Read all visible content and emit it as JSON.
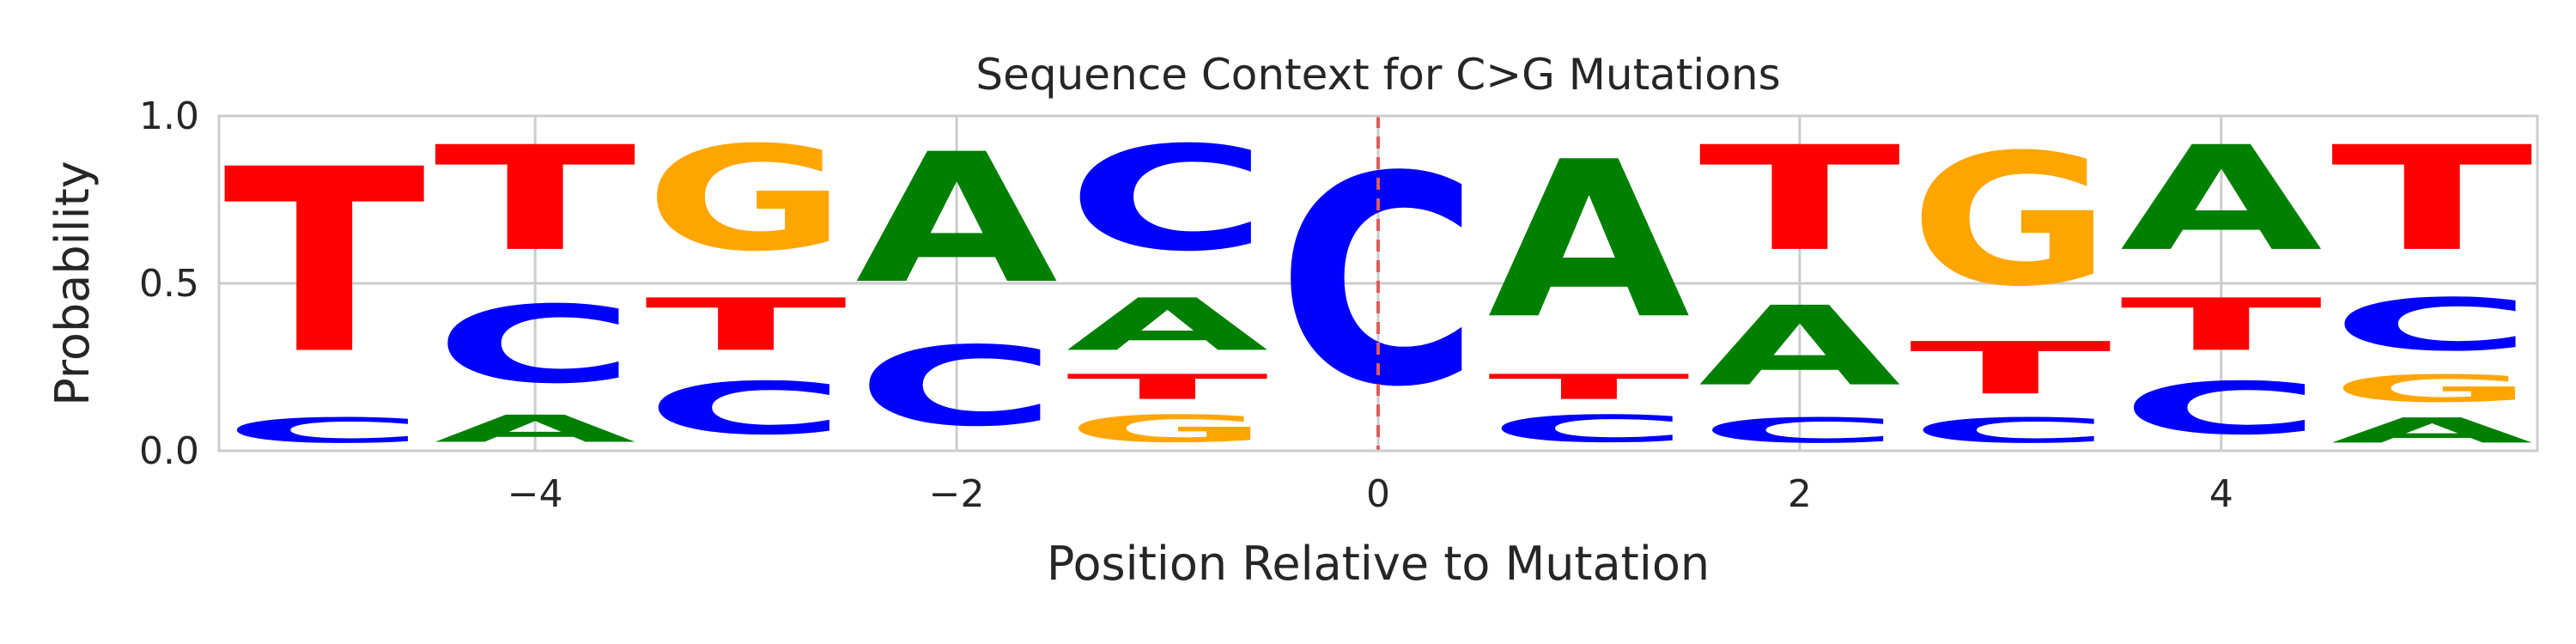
{
  "chart_data": {
    "type": "sequence-logo",
    "title": "Sequence Context for C>G Mutations",
    "xlabel": "Position Relative to Mutation",
    "ylabel": "Probability",
    "xlim": [
      -5.5,
      5.5
    ],
    "ylim": [
      0.0,
      1.0
    ],
    "xticks": [
      -4,
      -2,
      0,
      2,
      4
    ],
    "xtick_labels": [
      "−4",
      "−2",
      "0",
      "2",
      "4"
    ],
    "yticks": [
      0.0,
      0.5,
      1.0
    ],
    "ytick_labels": [
      "0.0",
      "0.5",
      "1.0"
    ],
    "grid": true,
    "mutation_line": {
      "x": 0,
      "color": "#e05a5a",
      "style": "dashed"
    },
    "colors": {
      "A": "#008000",
      "C": "#0000ff",
      "G": "#ffa500",
      "T": "#ff0000"
    },
    "positions": [
      {
        "x": -5,
        "stack": [
          {
            "base": "C",
            "value": 0.12
          },
          {
            "base": "T",
            "value": 0.88
          }
        ]
      },
      {
        "x": -4,
        "stack": [
          {
            "base": "A",
            "value": 0.13
          },
          {
            "base": "C",
            "value": 0.37
          },
          {
            "base": "T",
            "value": 0.5
          }
        ]
      },
      {
        "x": -3,
        "stack": [
          {
            "base": "C",
            "value": 0.25
          },
          {
            "base": "T",
            "value": 0.25
          },
          {
            "base": "G",
            "value": 0.5
          }
        ]
      },
      {
        "x": -2,
        "stack": [
          {
            "base": "C",
            "value": 0.38
          },
          {
            "base": "A",
            "value": 0.62
          }
        ]
      },
      {
        "x": -1,
        "stack": [
          {
            "base": "G",
            "value": 0.13
          },
          {
            "base": "T",
            "value": 0.12
          },
          {
            "base": "A",
            "value": 0.25
          },
          {
            "base": "C",
            "value": 0.5
          }
        ]
      },
      {
        "x": 0,
        "stack": [
          {
            "base": "C",
            "value": 1.0
          }
        ]
      },
      {
        "x": 1,
        "stack": [
          {
            "base": "C",
            "value": 0.13
          },
          {
            "base": "T",
            "value": 0.12
          },
          {
            "base": "A",
            "value": 0.75
          }
        ]
      },
      {
        "x": 2,
        "stack": [
          {
            "base": "C",
            "value": 0.12
          },
          {
            "base": "A",
            "value": 0.38
          },
          {
            "base": "T",
            "value": 0.5
          }
        ]
      },
      {
        "x": 3,
        "stack": [
          {
            "base": "C",
            "value": 0.12
          },
          {
            "base": "T",
            "value": 0.25
          },
          {
            "base": "G",
            "value": 0.63
          }
        ]
      },
      {
        "x": 4,
        "stack": [
          {
            "base": "C",
            "value": 0.25
          },
          {
            "base": "T",
            "value": 0.25
          },
          {
            "base": "A",
            "value": 0.5
          }
        ]
      },
      {
        "x": 5,
        "stack": [
          {
            "base": "A",
            "value": 0.12
          },
          {
            "base": "G",
            "value": 0.13
          },
          {
            "base": "C",
            "value": 0.25
          },
          {
            "base": "T",
            "value": 0.5
          }
        ]
      }
    ]
  }
}
